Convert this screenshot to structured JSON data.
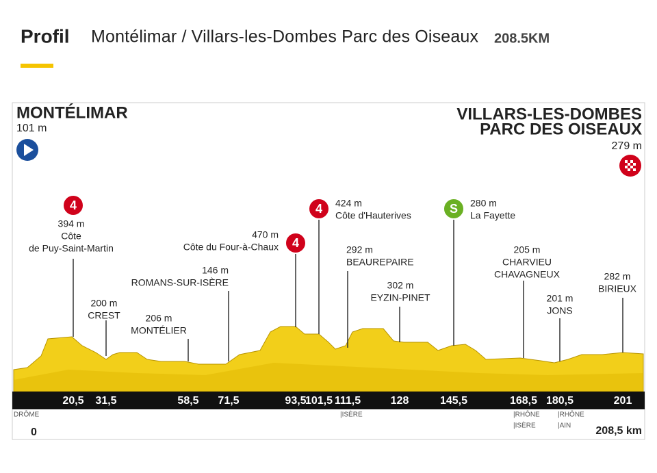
{
  "header": {
    "label": "Profil",
    "route": "Montélimar / Villars-les-Dombes Parc des Oiseaux",
    "distance": "208.5KM"
  },
  "start": {
    "name": "MONTÉLIMAR",
    "altitude": "101 m"
  },
  "finish": {
    "name": [
      "VILLARS-LES-DOMBES",
      "PARC DES OISEAUX"
    ],
    "altitude": "279 m"
  },
  "markers": [
    {
      "km": "20,5",
      "altitude": "394 m",
      "name": [
        "Côte",
        "de Puy-Saint-Martin"
      ],
      "badge": "4"
    },
    {
      "km": "31,5",
      "altitude": "200 m",
      "name": [
        "CREST"
      ]
    },
    {
      "km": "58,5",
      "altitude": "206 m",
      "name": [
        "MONTÉLIER"
      ]
    },
    {
      "km": "71,5",
      "altitude": "146 m",
      "name": [
        "ROMANS-SUR-ISÈRE"
      ]
    },
    {
      "km": "93,5",
      "altitude": "470 m",
      "name": [
        "Côte du Four-à-Chaux"
      ],
      "badge": "4"
    },
    {
      "km": "101,5",
      "altitude": "424 m",
      "name": [
        "Côte d'Hauterives"
      ],
      "badge": "4"
    },
    {
      "km": "111,5",
      "altitude": "292 m",
      "name": [
        "BEAUREPAIRE"
      ]
    },
    {
      "km": "128",
      "altitude": "302 m",
      "name": [
        "EYZIN-PINET"
      ]
    },
    {
      "km": "145,5",
      "altitude": "280 m",
      "name": [
        "La Fayette"
      ],
      "badge": "S"
    },
    {
      "km": "168,5",
      "altitude": "205 m",
      "name": [
        "CHARVIEU",
        "CHAVAGNEUX"
      ]
    },
    {
      "km": "180,5",
      "altitude": "201 m",
      "name": [
        "JONS"
      ]
    },
    {
      "km": "201",
      "altitude": "282 m",
      "name": [
        "BIRIEUX"
      ]
    }
  ],
  "km_start": "0",
  "km_end": "208,5 km",
  "regions": [
    {
      "lines": [
        "DRÔME"
      ]
    },
    {
      "lines": [
        "|ISÈRE"
      ]
    },
    {
      "lines": [
        "|RHÔNE",
        "|ISÈRE"
      ]
    },
    {
      "lines": [
        "|RHÔNE",
        "|AIN"
      ]
    }
  ]
}
